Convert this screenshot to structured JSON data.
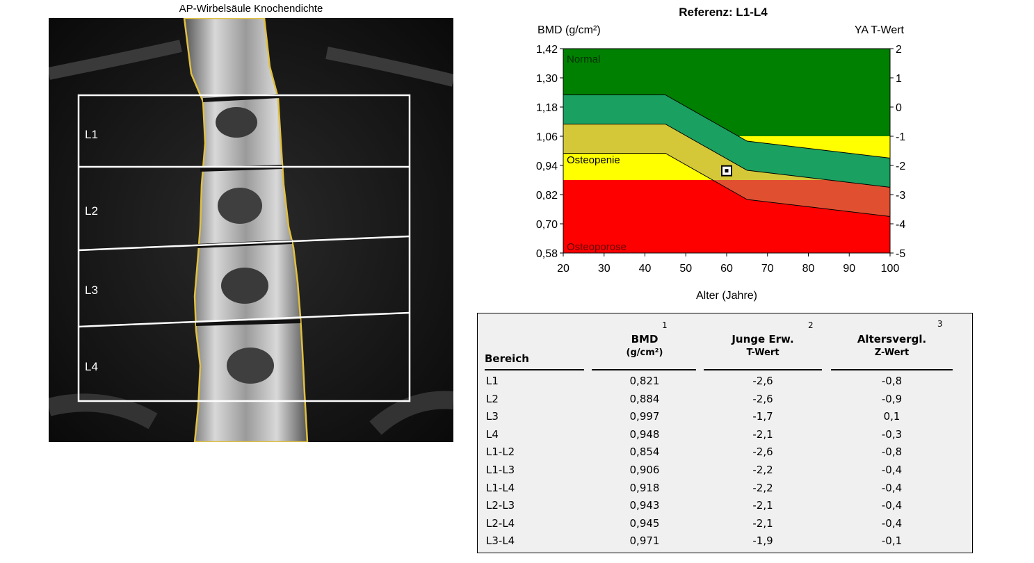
{
  "scan": {
    "title": "AP-Wirbelsäule Knochendichte",
    "regions": [
      "L1",
      "L2",
      "L3",
      "L4"
    ]
  },
  "chart_data": {
    "type": "area",
    "title": "Referenz: L1-L4",
    "ylabel": "BMD (g/cm²)",
    "y2label": "YA T-Wert",
    "xlabel": "Alter (Jahre)",
    "x_ticks": [
      "20",
      "30",
      "40",
      "50",
      "60",
      "70",
      "80",
      "90",
      "100"
    ],
    "y_ticks": [
      "1,42",
      "1,30",
      "1,18",
      "1,06",
      "0,94",
      "0,82",
      "0,70",
      "0,58"
    ],
    "y2_ticks": [
      "2",
      "1",
      "0",
      "-1",
      "-2",
      "-3",
      "-4",
      "-5"
    ],
    "xlim": [
      20,
      100
    ],
    "ylim": [
      0.58,
      1.42
    ],
    "zones": [
      {
        "label": "Normal",
        "from": 1.06,
        "to": 1.42,
        "color": "#008000"
      },
      {
        "label": "Osteopenie",
        "from": 0.88,
        "to": 1.06,
        "color": "#ffff00"
      },
      {
        "label": "Osteoporose",
        "from": 0.58,
        "to": 0.88,
        "color": "#ff0000"
      }
    ],
    "reference_curves": [
      {
        "x": [
          20,
          45,
          65,
          100
        ],
        "y": [
          1.23,
          1.23,
          1.04,
          0.97
        ]
      },
      {
        "x": [
          20,
          45,
          65,
          100
        ],
        "y": [
          1.11,
          1.11,
          0.92,
          0.85
        ]
      },
      {
        "x": [
          20,
          45,
          65,
          100
        ],
        "y": [
          0.99,
          0.99,
          0.8,
          0.73
        ]
      }
    ],
    "band_colors": {
      "upper": "#1aa060",
      "middle": "#d4c838",
      "lower": "#e05030"
    },
    "patient_point": {
      "x": 60,
      "y": 0.918
    }
  },
  "table": {
    "headers": {
      "region": "Bereich",
      "bmd": "BMD",
      "bmd_unit": "(g/cm²)",
      "young": "Junge Erw.",
      "young_sub": "T-Wert",
      "age": "Altersvergl.",
      "age_sub": "Z-Wert",
      "sup1": "1",
      "sup2": "2",
      "sup3": "3"
    },
    "rows": [
      {
        "region": "L1",
        "bmd": "0,821",
        "t": "-2,6",
        "z": "-0,8"
      },
      {
        "region": "L2",
        "bmd": "0,884",
        "t": "-2,6",
        "z": "-0,9"
      },
      {
        "region": "L3",
        "bmd": "0,997",
        "t": "-1,7",
        "z": "0,1"
      },
      {
        "region": "L4",
        "bmd": "0,948",
        "t": "-2,1",
        "z": "-0,3"
      },
      {
        "region": "L1-L2",
        "bmd": "0,854",
        "t": "-2,6",
        "z": "-0,8"
      },
      {
        "region": "L1-L3",
        "bmd": "0,906",
        "t": "-2,2",
        "z": "-0,4"
      },
      {
        "region": "L1-L4",
        "bmd": "0,918",
        "t": "-2,2",
        "z": "-0,4"
      },
      {
        "region": "L2-L3",
        "bmd": "0,943",
        "t": "-2,1",
        "z": "-0,4"
      },
      {
        "region": "L2-L4",
        "bmd": "0,945",
        "t": "-2,1",
        "z": "-0,4"
      },
      {
        "region": "L3-L4",
        "bmd": "0,971",
        "t": "-1,9",
        "z": "-0,1"
      }
    ]
  }
}
